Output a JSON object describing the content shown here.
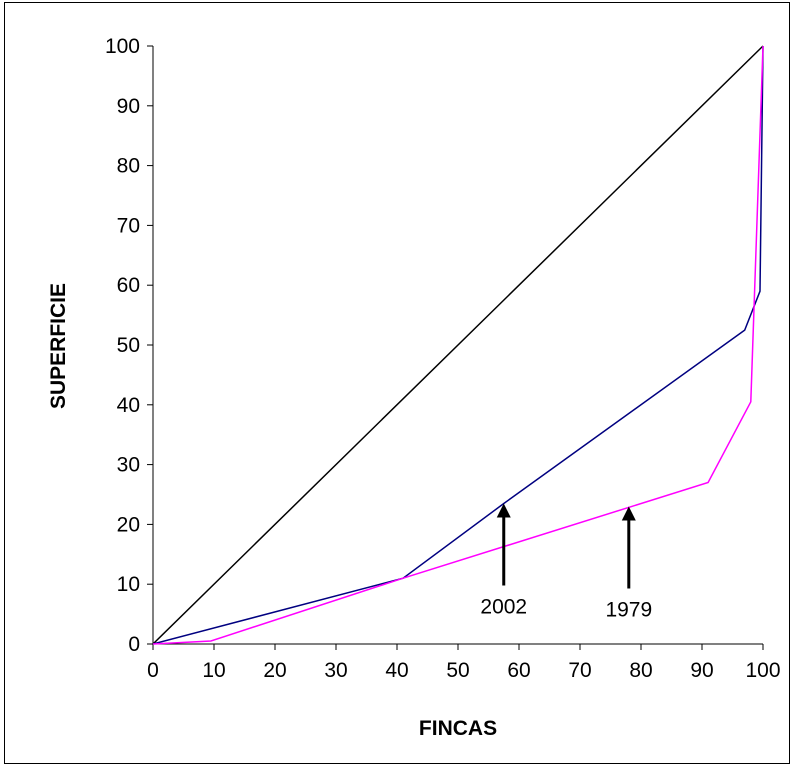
{
  "chart_data": {
    "type": "line",
    "title": "",
    "xlabel": "FINCAS",
    "ylabel": "SUPERFICIE",
    "xlim": [
      0,
      100
    ],
    "ylim": [
      0,
      100
    ],
    "xticks": [
      0,
      10,
      20,
      30,
      40,
      50,
      60,
      70,
      80,
      90,
      100
    ],
    "yticks": [
      0,
      10,
      20,
      30,
      40,
      50,
      60,
      70,
      80,
      90,
      100
    ],
    "grid": false,
    "legend": "none",
    "series": [
      {
        "role": "equality-line",
        "color": "#000000",
        "x": [
          0,
          100
        ],
        "y": [
          0,
          100
        ]
      },
      {
        "role": "curve-2002",
        "color": "#000080",
        "x": [
          0,
          41,
          57.5,
          97,
          99.5,
          100
        ],
        "y": [
          0,
          11,
          23.5,
          52.5,
          59,
          100
        ]
      },
      {
        "role": "curve-1979",
        "color": "#FF00FF",
        "x": [
          0,
          9.5,
          41,
          91,
          98,
          100
        ],
        "y": [
          0,
          0.5,
          11,
          27,
          40.5,
          100
        ]
      }
    ],
    "annotations": [
      {
        "text": "2002",
        "x": 57.5,
        "y": 23.5
      },
      {
        "text": "1979",
        "x": 78,
        "y": 23
      }
    ]
  }
}
